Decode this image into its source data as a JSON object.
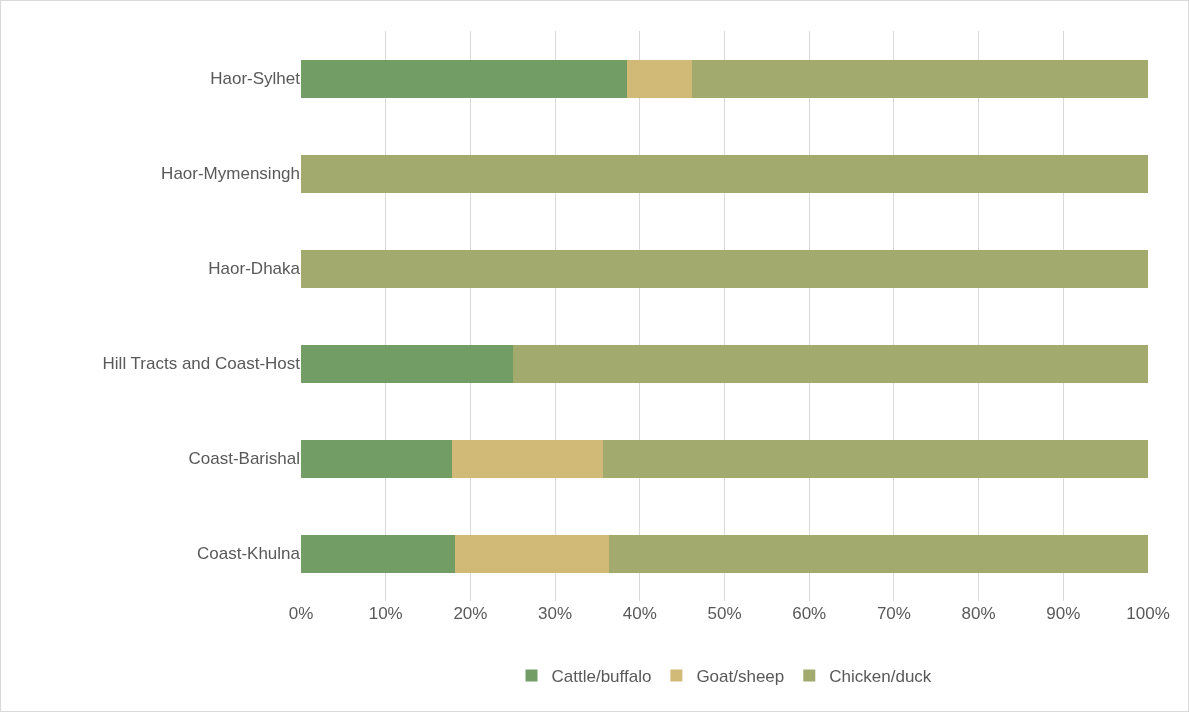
{
  "chart_data": {
    "type": "bar",
    "orientation": "horizontal",
    "stacked": true,
    "categories": [
      "Haor-Sylhet",
      "Haor-Mymensingh",
      "Haor-Dhaka",
      "Hill Tracts and Coast-Host",
      "Coast-Barishal",
      "Coast-Khulna"
    ],
    "series": [
      {
        "name": "Cattle/buffalo",
        "color": "#729e65",
        "values": [
          38.5,
          0,
          0,
          25,
          17.8,
          18.2
        ]
      },
      {
        "name": "Goat/sheep",
        "color": "#d1b978",
        "values": [
          7.7,
          0,
          0,
          0,
          17.8,
          18.2
        ]
      },
      {
        "name": "Chicken/duck",
        "color": "#a2aa6e",
        "values": [
          53.8,
          100,
          100,
          75,
          64.4,
          63.6
        ]
      }
    ],
    "xlim": [
      0,
      100
    ],
    "xticks": [
      {
        "value": 0,
        "label": "0%"
      },
      {
        "value": 10,
        "label": "10%"
      },
      {
        "value": 20,
        "label": "20%"
      },
      {
        "value": 30,
        "label": "30%"
      },
      {
        "value": 40,
        "label": "40%"
      },
      {
        "value": 50,
        "label": "50%"
      },
      {
        "value": 60,
        "label": "60%"
      },
      {
        "value": 70,
        "label": "70%"
      },
      {
        "value": 80,
        "label": "80%"
      },
      {
        "value": 90,
        "label": "90%"
      },
      {
        "value": 100,
        "label": "100%"
      }
    ],
    "grid": "x",
    "legend": "bottom"
  }
}
